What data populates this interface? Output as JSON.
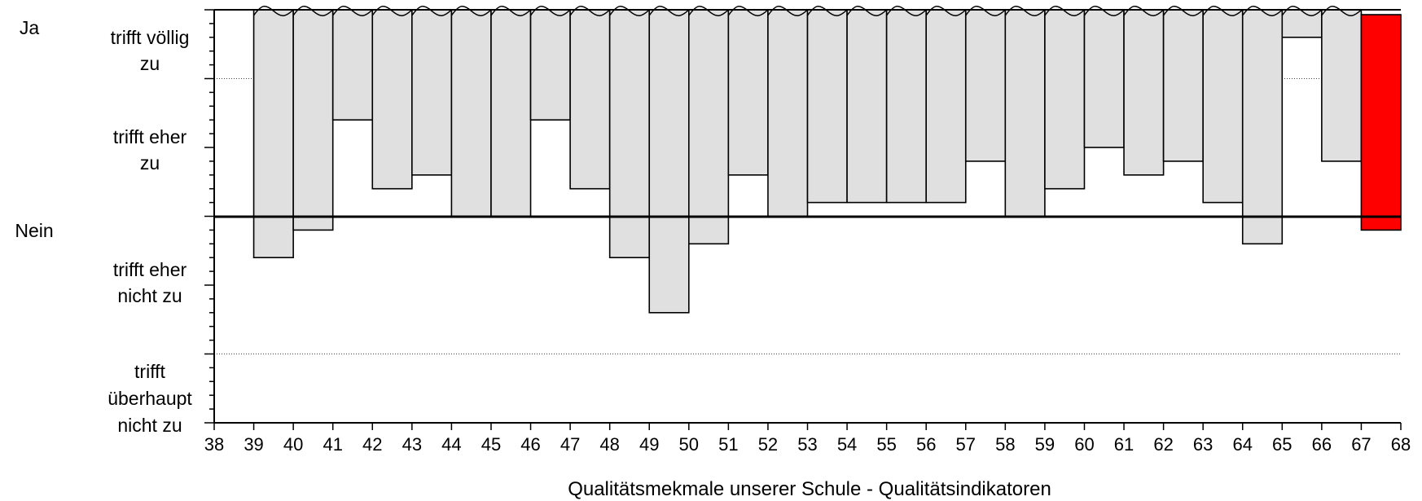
{
  "chart_data": {
    "type": "bar",
    "xlabel": "Qualitätsmekmale unserer Schule - Qualitätsindikatoren",
    "side_labels": {
      "top": "Ja",
      "bottom": "Nein"
    },
    "y_levels": [
      {
        "lines": [
          "trifft völlig",
          "zu"
        ]
      },
      {
        "lines": [
          "trifft eher",
          "zu"
        ]
      },
      {
        "lines": [
          "trifft eher",
          "nicht zu"
        ]
      },
      {
        "lines": [
          "trifft",
          "überhaupt",
          "nicht zu"
        ]
      }
    ],
    "ylim": [
      1,
      4
    ],
    "y_inverted": true,
    "x_ticks": [
      38,
      39,
      40,
      41,
      42,
      43,
      44,
      45,
      46,
      47,
      48,
      49,
      50,
      51,
      52,
      53,
      54,
      55,
      56,
      57,
      58,
      59,
      60,
      61,
      62,
      63,
      64,
      65,
      66,
      67,
      68
    ],
    "xlim": [
      38,
      68
    ],
    "categories": [
      39,
      40,
      41,
      42,
      43,
      44,
      45,
      46,
      47,
      48,
      49,
      50,
      51,
      52,
      53,
      54,
      55,
      56,
      57,
      58,
      59,
      60,
      61,
      62,
      63,
      64,
      65,
      66,
      67
    ],
    "values": [
      2.8,
      2.6,
      1.8,
      2.3,
      2.2,
      2.5,
      2.5,
      1.8,
      2.3,
      2.8,
      3.2,
      2.7,
      2.2,
      2.5,
      2.4,
      2.4,
      2.4,
      2.4,
      2.1,
      2.5,
      2.3,
      2.0,
      2.2,
      2.1,
      2.4,
      2.7,
      1.2,
      2.1,
      2.6
    ],
    "highlight_index": 28,
    "colors": {
      "bar": "#e0e0e0",
      "highlight": "#ff0000",
      "outline": "#000000"
    }
  }
}
